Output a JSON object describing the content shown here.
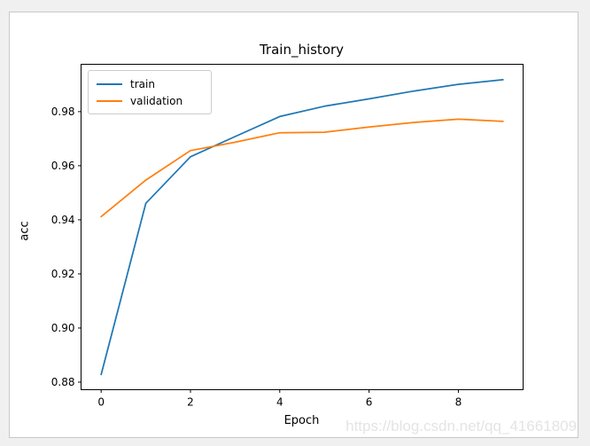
{
  "figure": {
    "title": "Train_history",
    "xlabel": "Epoch",
    "ylabel": "acc",
    "watermark": "https://blog.csdn.net/qq_41661809"
  },
  "colors": {
    "train_line": "#1f77b4",
    "validation_line": "#ff7f0e",
    "page_background": "#f0f0f0",
    "figure_background": "#ffffff",
    "figure_border": "#c9c9c9",
    "axes_spine": "#000000",
    "watermark_text": "#e4e4e4"
  },
  "chart_data": {
    "type": "line",
    "title": "Train_history",
    "xlabel": "Epoch",
    "ylabel": "acc",
    "x": [
      0,
      1,
      2,
      3,
      4,
      5,
      6,
      7,
      8,
      9
    ],
    "series": [
      {
        "name": "train",
        "color": "#1f77b4",
        "values": [
          0.8828,
          0.9461,
          0.9633,
          0.9708,
          0.9782,
          0.982,
          0.9847,
          0.9876,
          0.9901,
          0.9918
        ]
      },
      {
        "name": "validation",
        "color": "#ff7f0e",
        "values": [
          0.9412,
          0.9547,
          0.9656,
          0.9687,
          0.9722,
          0.9724,
          0.9743,
          0.976,
          0.9772,
          0.9764
        ]
      }
    ],
    "xlim": [
      -0.45,
      9.45
    ],
    "ylim": [
      0.8772,
      0.9975
    ],
    "xticks": [
      0,
      2,
      4,
      6,
      8
    ],
    "yticks": [
      0.88,
      0.9,
      0.92,
      0.94,
      0.96,
      0.98
    ],
    "ytick_decimals": 2,
    "grid": false,
    "legend_position": "upper left"
  }
}
